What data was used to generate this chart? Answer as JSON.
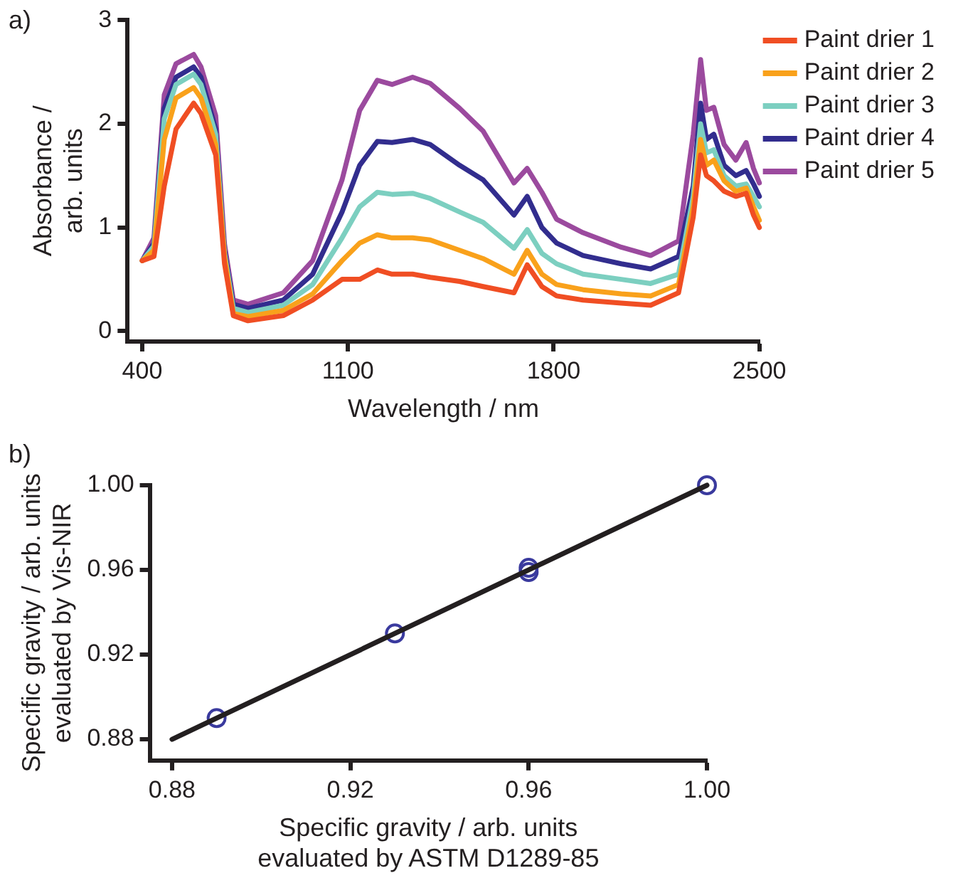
{
  "chart_data": [
    {
      "type": "line",
      "annotations": [
        "a)"
      ],
      "xlabel": "Wavelength / nm",
      "ylabel": "Absorbance / arb. units",
      "xlim": [
        350,
        2500
      ],
      "xticks": [
        400,
        1100,
        1800,
        2500
      ],
      "ylim": [
        -0.1,
        3
      ],
      "yticks": [
        0,
        1,
        2,
        3
      ],
      "legend": "right",
      "marker": "none",
      "grid": false,
      "x": [
        400,
        440,
        475,
        515,
        575,
        600,
        650,
        680,
        710,
        760,
        880,
        980,
        1080,
        1140,
        1200,
        1250,
        1320,
        1380,
        1480,
        1560,
        1665,
        1710,
        1760,
        1810,
        1900,
        2030,
        2130,
        2225,
        2275,
        2300,
        2320,
        2345,
        2380,
        2420,
        2455,
        2480,
        2500
      ],
      "series": [
        {
          "name": "Paint drier 1",
          "color": "#f04e23",
          "values": [
            0.68,
            0.72,
            1.4,
            1.95,
            2.2,
            2.1,
            1.7,
            0.65,
            0.15,
            0.1,
            0.15,
            0.3,
            0.5,
            0.5,
            0.59,
            0.55,
            0.55,
            0.52,
            0.48,
            0.43,
            0.37,
            0.64,
            0.43,
            0.34,
            0.3,
            0.27,
            0.25,
            0.37,
            1.1,
            1.7,
            1.5,
            1.45,
            1.35,
            1.3,
            1.33,
            1.12,
            1.0
          ]
        },
        {
          "name": "Paint drier 2",
          "color": "#f9a11b",
          "values": [
            0.68,
            0.78,
            1.85,
            2.25,
            2.35,
            2.25,
            1.8,
            0.72,
            0.17,
            0.14,
            0.2,
            0.36,
            0.68,
            0.85,
            0.93,
            0.9,
            0.9,
            0.88,
            0.78,
            0.7,
            0.55,
            0.78,
            0.55,
            0.45,
            0.4,
            0.36,
            0.34,
            0.45,
            1.2,
            1.85,
            1.6,
            1.65,
            1.45,
            1.35,
            1.38,
            1.2,
            1.07
          ]
        },
        {
          "name": "Paint drier 3",
          "color": "#7ccfc0",
          "values": [
            0.68,
            0.82,
            2.05,
            2.38,
            2.48,
            2.38,
            1.9,
            0.75,
            0.22,
            0.18,
            0.25,
            0.45,
            0.9,
            1.2,
            1.34,
            1.32,
            1.33,
            1.28,
            1.15,
            1.05,
            0.8,
            0.98,
            0.75,
            0.65,
            0.55,
            0.5,
            0.46,
            0.55,
            1.3,
            2.0,
            1.72,
            1.75,
            1.5,
            1.4,
            1.42,
            1.3,
            1.2
          ]
        },
        {
          "name": "Paint drier 4",
          "color": "#322d8e",
          "values": [
            0.68,
            0.85,
            2.15,
            2.45,
            2.55,
            2.45,
            1.95,
            0.78,
            0.26,
            0.22,
            0.3,
            0.55,
            1.15,
            1.6,
            1.83,
            1.82,
            1.85,
            1.8,
            1.6,
            1.46,
            1.12,
            1.3,
            1.0,
            0.85,
            0.73,
            0.65,
            0.6,
            0.72,
            1.4,
            2.2,
            1.85,
            1.9,
            1.6,
            1.5,
            1.55,
            1.42,
            1.3
          ]
        },
        {
          "name": "Paint drier 5",
          "color": "#9b4a9e",
          "values": [
            0.68,
            0.9,
            2.28,
            2.58,
            2.67,
            2.55,
            2.08,
            0.84,
            0.3,
            0.26,
            0.37,
            0.68,
            1.46,
            2.13,
            2.42,
            2.38,
            2.45,
            2.39,
            2.15,
            1.93,
            1.43,
            1.57,
            1.34,
            1.08,
            0.95,
            0.81,
            0.73,
            0.87,
            1.9,
            2.62,
            2.13,
            2.16,
            1.8,
            1.65,
            1.82,
            1.57,
            1.43
          ]
        }
      ]
    },
    {
      "type": "scatter",
      "annotations": [
        "b)"
      ],
      "xlabel": "Specific gravity / arb. units evaluated by ASTM D1289-85",
      "ylabel": "Specific gravity / arb. units evaluated by Vis-NIR",
      "xlim": [
        0.875,
        1.0
      ],
      "xticks": [
        0.88,
        0.92,
        0.96,
        {
          "value": 1.0,
          "label": "1.00"
        }
      ],
      "ylim": [
        0.87,
        1.0
      ],
      "yticks": [
        0.88,
        0.92,
        0.96,
        {
          "value": 1.0,
          "label": "1.00"
        }
      ],
      "legend": false,
      "grid": false,
      "series": [
        {
          "type": "line",
          "color": "#231f20",
          "x": [
            0.88,
            1.0
          ],
          "values": [
            0.88,
            1.0
          ],
          "marker": "none"
        },
        {
          "color": "#3a3a9e",
          "x": [
            0.89,
            0.93,
            0.96,
            0.96,
            1.0
          ],
          "values": [
            0.89,
            0.93,
            0.961,
            0.959,
            1.0
          ],
          "marker": "circle"
        }
      ]
    }
  ]
}
